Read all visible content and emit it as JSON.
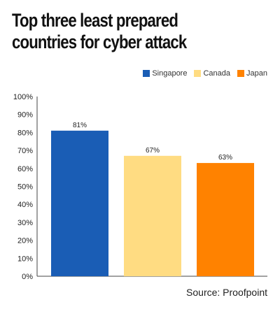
{
  "chart_data": {
    "type": "bar",
    "title": "Top three least prepared countries for cyber attack",
    "categories": [
      "Singapore",
      "Canada",
      "Japan"
    ],
    "values": [
      81,
      67,
      63
    ],
    "value_labels": [
      "81%",
      "67%",
      "63%"
    ],
    "colors": [
      "#1a5db5",
      "#ffdc82",
      "#ff8200"
    ],
    "ylim": [
      0,
      100
    ],
    "y_ticks": [
      "0%",
      "10%",
      "20%",
      "30%",
      "40%",
      "50%",
      "60%",
      "70%",
      "80%",
      "90%",
      "100%"
    ],
    "grid": false,
    "legend_position": "top-right",
    "source": "Source: Proofpoint"
  }
}
